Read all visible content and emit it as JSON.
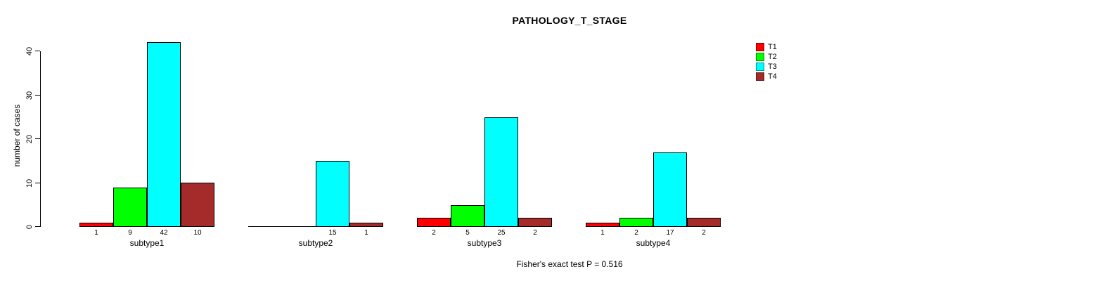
{
  "title": "PATHOLOGY_T_STAGE",
  "footer": "Fisher's exact test P = 0.516",
  "chart_data": {
    "type": "bar",
    "title": "PATHOLOGY_T_STAGE",
    "xlabel": "",
    "ylabel": "number of cases",
    "categories": [
      "subtype1",
      "subtype2",
      "subtype3",
      "subtype4"
    ],
    "series": [
      {
        "name": "T1",
        "color": "#ff0000",
        "values": [
          1,
          0,
          2,
          1
        ]
      },
      {
        "name": "T2",
        "color": "#00ff00",
        "values": [
          9,
          0,
          5,
          2
        ]
      },
      {
        "name": "T3",
        "color": "#00ffff",
        "values": [
          42,
          15,
          25,
          17
        ]
      },
      {
        "name": "T4",
        "color": "#a52a2a",
        "values": [
          10,
          1,
          2,
          2
        ]
      }
    ],
    "bar_value_labels": "shown for non-zero bars only",
    "ylim": [
      0,
      40
    ],
    "yticks": [
      0,
      10,
      20,
      30,
      40
    ],
    "grid": false,
    "legend_position": "top-right",
    "annotation": "Fisher's exact test P = 0.516"
  }
}
